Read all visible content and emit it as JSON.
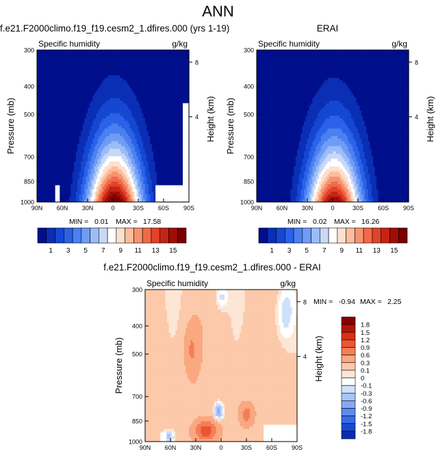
{
  "page": {
    "title": "ANN"
  },
  "colors": {
    "sequential": [
      "#000f8c",
      "#0a2eb4",
      "#1447d2",
      "#2a62e8",
      "#4a80f0",
      "#6f9cf5",
      "#9bbcf7",
      "#c8d9f7",
      "#ffffff",
      "#fde0cc",
      "#fbbd9d",
      "#f7936f",
      "#f06a48",
      "#e0432a",
      "#c42414",
      "#a00d06",
      "#7a0000"
    ],
    "difference": [
      "#00147e",
      "#0a2db0",
      "#1a4ad2",
      "#3a6be6",
      "#5d8bef",
      "#85a9f4",
      "#a9c5f7",
      "#cfe0fa",
      "#ffffff",
      "#fde6d6",
      "#fcc9ab",
      "#f9a880",
      "#f47f57",
      "#ea5534",
      "#d72f18",
      "#b3140a",
      "#8a0000"
    ]
  },
  "chart_data": [
    {
      "type": "heatmap",
      "title": "f.e21.F2000climo.f19_f19.cesm2_1.dfires.000 (yrs 1-19)",
      "subtitle_left": "Specific humidity",
      "subtitle_right": "g/kg",
      "ylabel": "Pressure (mb)",
      "ylabel_right": "Height (km)",
      "x_ticks": [
        "90N",
        "60N",
        "30N",
        "0",
        "30S",
        "60S",
        "90S"
      ],
      "y_ticks": [
        "300",
        "400",
        "500",
        "700",
        "850",
        "1000"
      ],
      "y_ticks_right": [
        "8",
        "4"
      ],
      "min_label": "MIN =",
      "min": "0.01",
      "max_label": "MAX =",
      "max": "17.58",
      "colorbar_labels": [
        "1",
        "3",
        "5",
        "7",
        "9",
        "11",
        "13",
        "15"
      ],
      "peak_value": 17.58,
      "peak_lat": -2
    },
    {
      "type": "heatmap",
      "title": "ERAI",
      "subtitle_left": "Specific humidity",
      "subtitle_right": "g/kg",
      "ylabel": "Pressure (mb)",
      "ylabel_right": "Height (km)",
      "x_ticks": [
        "90N",
        "60N",
        "30N",
        "0",
        "30S",
        "60S",
        "90S"
      ],
      "y_ticks": [
        "300",
        "400",
        "500",
        "700",
        "850",
        "1000"
      ],
      "y_ticks_right": [
        "8",
        "4"
      ],
      "min_label": "MIN =",
      "min": "0.02",
      "max_label": "MAX =",
      "max": "16.26",
      "colorbar_labels": [
        "1",
        "3",
        "5",
        "7",
        "9",
        "11",
        "13",
        "15"
      ],
      "peak_value": 16.26,
      "peak_lat": -2
    },
    {
      "type": "heatmap",
      "title": "f.e21.F2000climo.f19_f19.cesm2_1.dfires.000 - ERAI",
      "subtitle_left": "Specific humidity",
      "subtitle_right": "g/kg",
      "ylabel": "Pressure (mb)",
      "ylabel_right": "Height (km)",
      "x_ticks": [
        "90N",
        "60N",
        "30N",
        "0",
        "30S",
        "60S",
        "90S"
      ],
      "y_ticks": [
        "300",
        "400",
        "500",
        "700",
        "850",
        "1000"
      ],
      "y_ticks_right": [
        "8",
        "4"
      ],
      "min_label": "MIN =",
      "min": "-0.94",
      "max_label": "MAX =",
      "max": "2.25",
      "colorbar_labels": [
        "1.8",
        "1.5",
        "1.2",
        "0.9",
        "0.6",
        "0.3",
        "0.1",
        "0",
        "-0.1",
        "-0.3",
        "-0.6",
        "-0.9",
        "-1.2",
        "-1.5",
        "-1.8"
      ]
    }
  ]
}
